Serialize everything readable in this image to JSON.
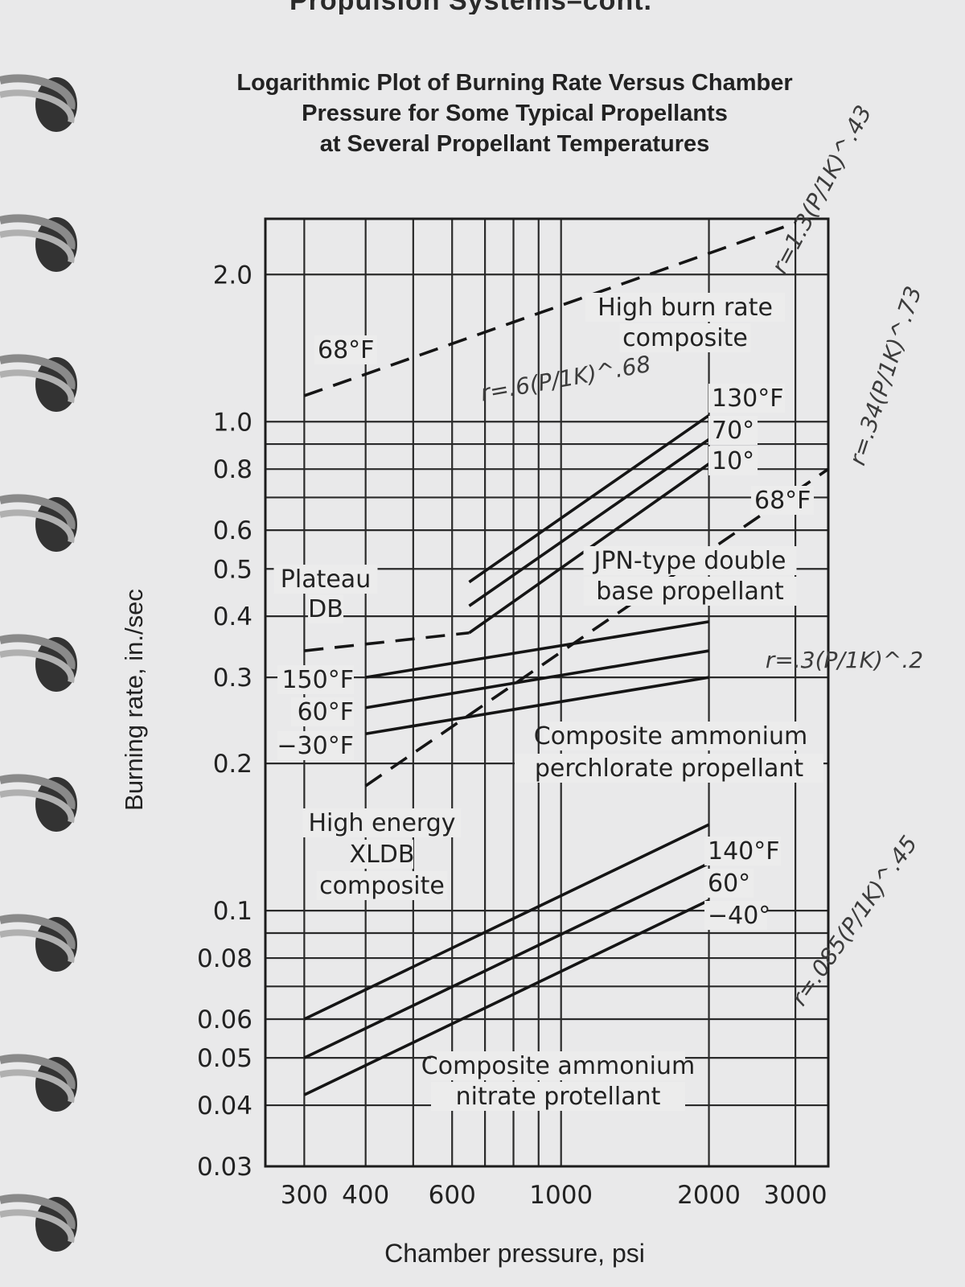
{
  "page_header": "Propulsion Systems–cont.",
  "chart_data": {
    "type": "line",
    "title": "Logarithmic Plot of Burning Rate Versus Chamber Pressure for Some Typical Propellants at Several Propellant Temperatures",
    "title_lines": [
      "Logarithmic Plot of Burning Rate Versus Chamber",
      "Pressure for Some Typical Propellants",
      "at Several Propellant Temperatures"
    ],
    "xlabel": "Chamber pressure, psi",
    "ylabel": "Burning rate, in./sec",
    "x_scale": "log",
    "y_scale": "log",
    "xlim": [
      250,
      3500
    ],
    "ylim": [
      0.03,
      2.6
    ],
    "grid": true,
    "x_ticks": [
      {
        "value": 300,
        "label": "300"
      },
      {
        "value": 400,
        "label": "400"
      },
      {
        "value": 600,
        "label": "600"
      },
      {
        "value": 1000,
        "label": "1000"
      },
      {
        "value": 2000,
        "label": "2000"
      },
      {
        "value": 3000,
        "label": "3000"
      }
    ],
    "y_ticks": [
      {
        "value": 2.0,
        "label": "2.0"
      },
      {
        "value": 1.0,
        "label": "1.0"
      },
      {
        "value": 0.8,
        "label": "0.8"
      },
      {
        "value": 0.6,
        "label": "0.6"
      },
      {
        "value": 0.5,
        "label": "0.5"
      },
      {
        "value": 0.4,
        "label": "0.4"
      },
      {
        "value": 0.3,
        "label": "0.3"
      },
      {
        "value": 0.2,
        "label": "0.2"
      },
      {
        "value": 0.1,
        "label": "0.1"
      },
      {
        "value": 0.08,
        "label": "0.08"
      },
      {
        "value": 0.06,
        "label": "0.06"
      },
      {
        "value": 0.05,
        "label": "0.05"
      },
      {
        "value": 0.04,
        "label": "0.04"
      },
      {
        "value": 0.03,
        "label": "0.03"
      }
    ],
    "series": [
      {
        "key": "hbr-68",
        "style": "dashed",
        "x": [
          300,
          3000
        ],
        "y": [
          1.13,
          2.55
        ]
      },
      {
        "key": "hbr-130",
        "style": "solid",
        "x": [
          650,
          2000
        ],
        "y": [
          0.47,
          1.03
        ]
      },
      {
        "key": "hbr-70",
        "style": "solid",
        "x": [
          650,
          2000
        ],
        "y": [
          0.42,
          0.92
        ]
      },
      {
        "key": "hbr-10",
        "style": "solid",
        "x": [
          650,
          2000
        ],
        "y": [
          0.37,
          0.82
        ]
      },
      {
        "key": "jpn-68",
        "style": "dashed",
        "x": [
          400,
          3500
        ],
        "y": [
          0.18,
          0.8
        ]
      },
      {
        "key": "plateau-db",
        "style": "dashed",
        "x": [
          300,
          650
        ],
        "y": [
          0.34,
          0.37
        ]
      },
      {
        "key": "capp-150",
        "style": "solid",
        "x": [
          400,
          2000
        ],
        "y": [
          0.3,
          0.39
        ]
      },
      {
        "key": "capp-60",
        "style": "solid",
        "x": [
          400,
          2000
        ],
        "y": [
          0.26,
          0.34
        ]
      },
      {
        "key": "capp-m30",
        "style": "solid",
        "x": [
          400,
          2000
        ],
        "y": [
          0.23,
          0.3
        ]
      },
      {
        "key": "canp-140",
        "style": "solid",
        "x": [
          300,
          2000
        ],
        "y": [
          0.06,
          0.15
        ]
      },
      {
        "key": "canp-60",
        "style": "solid",
        "x": [
          300,
          2000
        ],
        "y": [
          0.05,
          0.125
        ]
      },
      {
        "key": "canp-m40",
        "style": "solid",
        "x": [
          300,
          2000
        ],
        "y": [
          0.042,
          0.105
        ]
      }
    ],
    "annotations": [
      {
        "key": "hbr-68",
        "text": "68°F"
      },
      {
        "key": "hbr-name-1",
        "text": "High burn rate"
      },
      {
        "key": "hbr-name-2",
        "text": "composite"
      },
      {
        "key": "hbr-130",
        "text": "130°F"
      },
      {
        "key": "hbr-70",
        "text": "70°"
      },
      {
        "key": "hbr-10",
        "text": "10°"
      },
      {
        "key": "jpn-68",
        "text": "68°F"
      },
      {
        "key": "jpn-name-1",
        "text": "JPN-type double"
      },
      {
        "key": "jpn-name-2",
        "text": "base propellant"
      },
      {
        "key": "plateau-1",
        "text": "Plateau"
      },
      {
        "key": "plateau-2",
        "text": "DB"
      },
      {
        "key": "capp-150",
        "text": "150°F"
      },
      {
        "key": "capp-60",
        "text": "60°F"
      },
      {
        "key": "capp-m30",
        "text": "−30°F"
      },
      {
        "key": "capp-name-1",
        "text": "Composite ammonium"
      },
      {
        "key": "capp-name-2",
        "text": "perchlorate propellant"
      },
      {
        "key": "xldb-1",
        "text": "High energy"
      },
      {
        "key": "xldb-2",
        "text": "XLDB"
      },
      {
        "key": "xldb-3",
        "text": "composite"
      },
      {
        "key": "canp-140",
        "text": "140°F"
      },
      {
        "key": "canp-60",
        "text": "60°"
      },
      {
        "key": "canp-m40",
        "text": "−40°"
      },
      {
        "key": "canp-name-1",
        "text": "Composite ammonium"
      },
      {
        "key": "canp-name-2",
        "text": "nitrate protellant"
      }
    ],
    "handwritten_notes": [
      {
        "key": "note-hbr",
        "text": "r=1.3(P/1K)^.43"
      },
      {
        "key": "note-jpn",
        "text": "r=.34(P/1K)^.73"
      },
      {
        "key": "note-inner",
        "text": "r=.6(P/1K)^.68"
      },
      {
        "key": "note-capp",
        "text": "r=.3(P/1K)^.2"
      },
      {
        "key": "note-canp",
        "text": "r=.085(P/1K)^.45"
      }
    ]
  }
}
